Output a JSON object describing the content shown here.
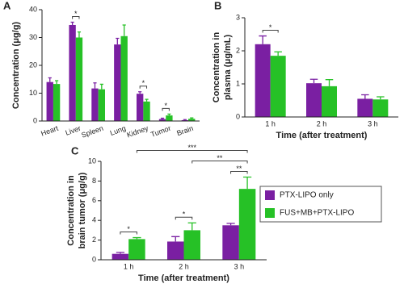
{
  "chart_data": [
    {
      "panel": "A",
      "type": "bar",
      "categories": [
        "Heart",
        "Liver",
        "Spleen",
        "Lung",
        "Kidney",
        "Tumor",
        "Brain"
      ],
      "series": [
        {
          "color": "#7a1fa2",
          "values": [
            14,
            34.5,
            11.7,
            27.5,
            9.8,
            0.7,
            0.3
          ],
          "errors": [
            1.5,
            1,
            2,
            2.2,
            0.7,
            0.3,
            0.2
          ]
        },
        {
          "color": "#26c126",
          "values": [
            13.3,
            30,
            11.4,
            30.5,
            7,
            2,
            0.8
          ],
          "errors": [
            1.2,
            2,
            1.8,
            4,
            0.8,
            0.5,
            0.3
          ]
        }
      ],
      "ylim": [
        0,
        40
      ],
      "yticks": [
        0,
        10,
        20,
        30,
        40
      ],
      "ylabel": [
        "Concentration (μg/g)"
      ],
      "annotations": [
        {
          "text": "*",
          "from": [
            1,
            0
          ],
          "to": [
            1,
            1
          ]
        },
        {
          "text": "*",
          "from": [
            4,
            0
          ],
          "to": [
            4,
            1
          ]
        },
        {
          "text": "*",
          "from": [
            5,
            0
          ],
          "to": [
            5,
            1
          ]
        }
      ]
    },
    {
      "panel": "B",
      "type": "bar",
      "categories": [
        "1 h",
        "2 h",
        "3 h"
      ],
      "series": [
        {
          "color": "#7a1fa2",
          "values": [
            2.2,
            1.02,
            0.55
          ],
          "errors": [
            0.25,
            0.12,
            0.12
          ]
        },
        {
          "color": "#26c126",
          "values": [
            1.85,
            0.93,
            0.53
          ],
          "errors": [
            0.12,
            0.2,
            0.08
          ]
        }
      ],
      "ylim": [
        0,
        3
      ],
      "yticks": [
        0,
        1,
        2,
        3
      ],
      "ylabel": [
        "Concentration in",
        "plasma (μg/mL)"
      ],
      "xlabel": "Time (after treatment)",
      "annotations": [
        {
          "text": "*",
          "from": [
            0,
            0
          ],
          "to": [
            0,
            1
          ]
        }
      ]
    },
    {
      "panel": "C",
      "type": "bar",
      "categories": [
        "1 h",
        "2 h",
        "3 h"
      ],
      "series": [
        {
          "name": "PTX-LIPO only",
          "color": "#7a1fa2",
          "values": [
            0.6,
            1.85,
            3.5
          ],
          "errors": [
            0.15,
            0.5,
            0.2
          ]
        },
        {
          "name": "FUS+MB+PTX-LIPO",
          "color": "#26c126",
          "values": [
            2.1,
            3,
            7.2
          ],
          "errors": [
            0.15,
            0.75,
            1.2
          ]
        }
      ],
      "ylim": [
        0,
        10
      ],
      "yticks": [
        0,
        2,
        4,
        6,
        8,
        10
      ],
      "ylabel": [
        "Concentration in",
        "brain tumor (μg/g)"
      ],
      "xlabel": "Time (after treatment)",
      "annotations": [
        {
          "text": "*",
          "from": [
            0,
            0
          ],
          "to": [
            0,
            1
          ]
        },
        {
          "text": "*",
          "from": [
            1,
            0
          ],
          "to": [
            1,
            1
          ]
        },
        {
          "text": "**",
          "from": [
            2,
            0
          ],
          "to": [
            2,
            1
          ]
        },
        {
          "text": "**",
          "from": [
            1,
            1
          ],
          "to": [
            2,
            1
          ]
        },
        {
          "text": "***",
          "from": [
            0,
            1
          ],
          "to": [
            2,
            1
          ]
        }
      ]
    }
  ]
}
